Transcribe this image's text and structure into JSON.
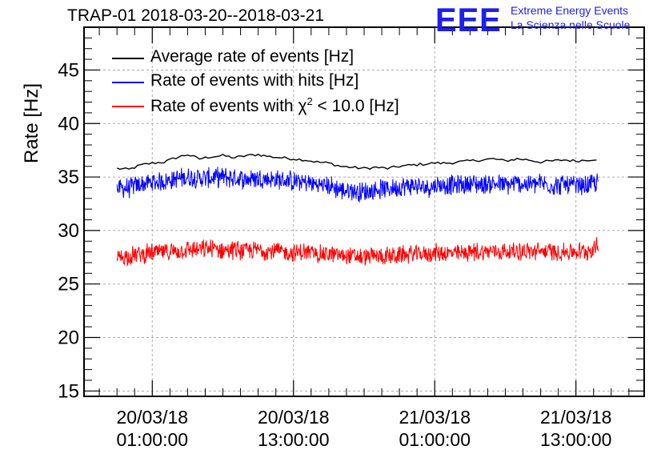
{
  "header": {
    "title": "TRAP-01 2018-03-20--2018-03-21",
    "logo": "EEE",
    "logo_line1": "Extreme Energy Events",
    "logo_line2": "La Scienza nelle Scuole"
  },
  "colors": {
    "average": "#000000",
    "hits": "#0000ff",
    "chi2": "#ff0000",
    "grid": "#aaaaaa",
    "logo": "#1e1ef0"
  },
  "chart_data": {
    "type": "line",
    "title": "TRAP-01 2018-03-20--2018-03-21",
    "ylabel": "Rate [Hz]",
    "xlabel": "",
    "ylim": [
      14.5,
      49
    ],
    "xlim_hours": [
      -5.8,
      41.8
    ],
    "x_unit": "hours since 20/03/18 01:00:00",
    "yticks": [
      15,
      20,
      25,
      30,
      35,
      40,
      45
    ],
    "xticks": [
      {
        "hour": 0,
        "line1": "20/03/18",
        "line2": "01:00:00"
      },
      {
        "hour": 12,
        "line1": "20/03/18",
        "line2": "13:00:00"
      },
      {
        "hour": 24,
        "line1": "21/03/18",
        "line2": "01:00:00"
      },
      {
        "hour": 36,
        "line1": "21/03/18",
        "line2": "13:00:00"
      }
    ],
    "grid": true,
    "legend_position": "top-left",
    "series": [
      {
        "name": "Average rate of events [Hz]",
        "color": "#000000",
        "style": "smooth",
        "x": [
          -3.0,
          -2.0,
          -1.0,
          0,
          1,
          2,
          3,
          4,
          5,
          6,
          7,
          8,
          9,
          10,
          11,
          12,
          13,
          14,
          15,
          16,
          17,
          18,
          19,
          20,
          21,
          22,
          23,
          24,
          25,
          26,
          27,
          28,
          29,
          30,
          31,
          32,
          33,
          34,
          35,
          36,
          37,
          37.9
        ],
        "values": [
          35.8,
          35.7,
          36.1,
          36.3,
          36.4,
          36.8,
          37.1,
          36.7,
          36.9,
          37.0,
          36.8,
          37.0,
          37.1,
          36.9,
          36.8,
          36.7,
          36.6,
          36.4,
          36.3,
          36.0,
          35.9,
          35.8,
          35.9,
          35.8,
          36.0,
          36.1,
          36.2,
          36.3,
          36.3,
          36.4,
          36.5,
          36.6,
          36.7,
          36.5,
          36.7,
          36.6,
          36.4,
          36.5,
          36.6,
          36.5,
          36.6,
          36.7
        ]
      },
      {
        "name": "Rate of events with hits [Hz]",
        "color": "#0000ff",
        "style": "noisy",
        "x": [
          -3.0,
          -2.0,
          -1.0,
          0,
          1,
          2,
          3,
          4,
          5,
          6,
          7,
          8,
          9,
          10,
          11,
          12,
          13,
          14,
          15,
          16,
          17,
          18,
          19,
          20,
          21,
          22,
          23,
          24,
          25,
          26,
          27,
          28,
          29,
          30,
          31,
          32,
          33,
          34,
          35,
          36,
          37,
          37.9
        ],
        "values": [
          33.9,
          34.0,
          34.3,
          34.5,
          34.6,
          34.8,
          35.0,
          34.9,
          34.9,
          35.0,
          34.9,
          34.8,
          34.9,
          34.8,
          34.7,
          34.6,
          34.5,
          34.3,
          34.2,
          33.8,
          33.7,
          33.6,
          33.8,
          33.9,
          34.1,
          34.2,
          34.0,
          34.2,
          34.3,
          34.2,
          34.4,
          34.3,
          34.4,
          34.2,
          34.4,
          34.3,
          34.4,
          34.2,
          34.3,
          34.1,
          34.2,
          34.5
        ],
        "noise_range": [
          1.0,
          2.6
        ]
      },
      {
        "name": "Rate of events with χ² < 10.0 [Hz]",
        "color": "#ff0000",
        "style": "noisy",
        "x": [
          -3.0,
          -2.0,
          -1.0,
          0,
          1,
          2,
          3,
          4,
          5,
          6,
          7,
          8,
          9,
          10,
          11,
          12,
          13,
          14,
          15,
          16,
          17,
          18,
          19,
          20,
          21,
          22,
          23,
          24,
          25,
          26,
          27,
          28,
          29,
          30,
          31,
          32,
          33,
          34,
          35,
          36,
          37,
          37.9
        ],
        "values": [
          27.5,
          27.6,
          27.8,
          27.9,
          28.0,
          28.1,
          28.2,
          28.2,
          28.3,
          28.2,
          28.2,
          28.1,
          28.2,
          28.1,
          28.0,
          27.9,
          28.0,
          27.8,
          27.8,
          27.7,
          27.6,
          27.5,
          27.6,
          27.6,
          27.7,
          27.8,
          27.8,
          27.9,
          27.9,
          27.8,
          28.0,
          28.0,
          28.1,
          28.0,
          28.1,
          28.0,
          28.1,
          28.0,
          28.0,
          28.0,
          28.1,
          28.5
        ],
        "noise_range": [
          0.9,
          2.4
        ]
      }
    ]
  },
  "legend": [
    {
      "label": "Average rate of events [Hz]"
    },
    {
      "label": "Rate of events with hits [Hz]"
    },
    {
      "label_prefix": "Rate of events with ",
      "label_symbol": "χ",
      "label_sup": "2",
      "label_suffix": " < 10.0 [Hz]"
    }
  ]
}
